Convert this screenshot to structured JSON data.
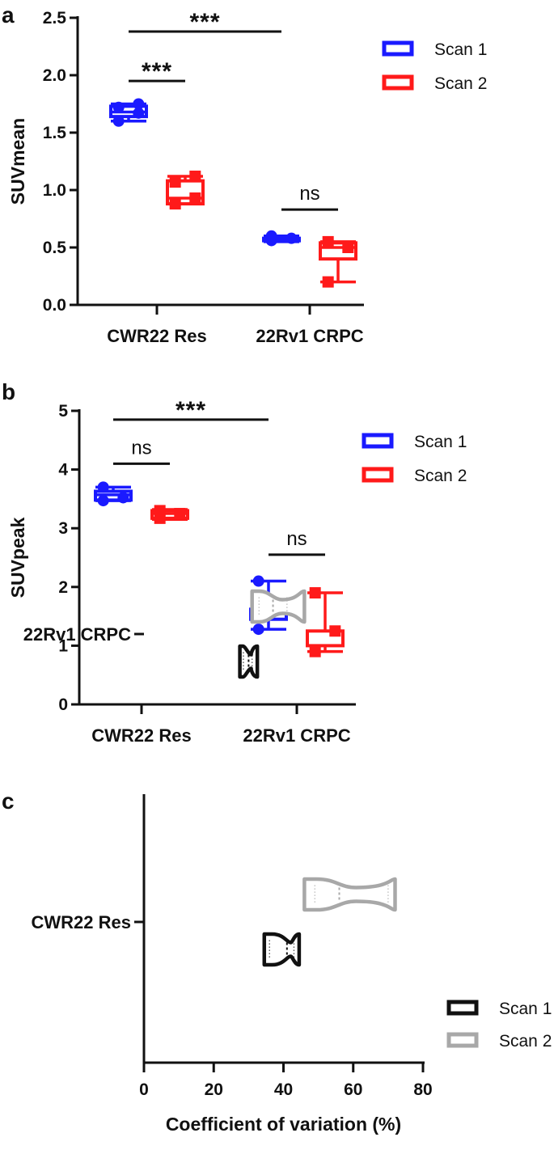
{
  "chart_data": [
    {
      "panel": "a",
      "type": "box",
      "ylabel": "SUVmean",
      "ylim": [
        0,
        2.5
      ],
      "yticks": [
        "0.0",
        "0.5",
        "1.0",
        "1.5",
        "2.0",
        "2.5"
      ],
      "categories": [
        "CWR22 Res",
        "22Rv1 CRPC"
      ],
      "legend": {
        "position": "top-right",
        "entries": [
          "Scan 1",
          "Scan 2"
        ]
      },
      "series": [
        {
          "name": "Scan 1",
          "color": "#1a1aff",
          "groups": [
            {
              "min": 1.6,
              "q1": 1.64,
              "median": 1.68,
              "q3": 1.73,
              "max": 1.75,
              "points": [
                1.6,
                1.67,
                1.72,
                1.75
              ]
            },
            {
              "min": 0.55,
              "q1": 0.56,
              "median": 0.57,
              "q3": 0.58,
              "max": 0.6,
              "points": [
                0.56,
                0.58,
                0.6
              ]
            }
          ]
        },
        {
          "name": "Scan 2",
          "color": "#ff1a1a",
          "groups": [
            {
              "min": 0.88,
              "q1": 0.88,
              "median": 0.93,
              "q3": 1.08,
              "max": 1.12,
              "points": [
                0.88,
                0.93,
                1.07,
                1.12
              ]
            },
            {
              "min": 0.2,
              "q1": 0.4,
              "median": 0.5,
              "q3": 0.54,
              "max": 0.55,
              "points": [
                0.2,
                0.5,
                0.55
              ]
            }
          ]
        }
      ],
      "comparisons": [
        {
          "from": [
            0,
            0
          ],
          "to": [
            0,
            1
          ],
          "y": 1.95,
          "label": "***"
        },
        {
          "from": [
            0,
            0
          ],
          "to": [
            1,
            0
          ],
          "y": 2.38,
          "label": "***"
        },
        {
          "from": [
            1,
            0
          ],
          "to": [
            1,
            1
          ],
          "y": 0.83,
          "label": "ns"
        }
      ]
    },
    {
      "panel": "b",
      "type": "box",
      "ylabel": "SUVpeak",
      "ylim": [
        0,
        5
      ],
      "yticks": [
        "0",
        "1",
        "2",
        "3",
        "4",
        "5"
      ],
      "categories": [
        "CWR22 Res",
        "22Rv1 CRPC"
      ],
      "legend": {
        "position": "top-right",
        "entries": [
          "Scan 1",
          "Scan 2"
        ]
      },
      "series": [
        {
          "name": "Scan 1",
          "color": "#1a1aff",
          "groups": [
            {
              "min": 3.47,
              "q1": 3.48,
              "median": 3.57,
              "q3": 3.63,
              "max": 3.7,
              "points": [
                3.47,
                3.52,
                3.7
              ]
            },
            {
              "min": 1.28,
              "q1": 1.45,
              "median": 1.62,
              "q3": 1.62,
              "max": 2.1,
              "points": [
                1.28,
                1.62,
                2.1
              ]
            }
          ]
        },
        {
          "name": "Scan 2",
          "color": "#ff1a1a",
          "groups": [
            {
              "min": 3.15,
              "q1": 3.17,
              "median": 3.25,
              "q3": 3.3,
              "max": 3.32,
              "points": [
                3.17,
                3.25,
                3.3
              ]
            },
            {
              "min": 0.9,
              "q1": 1.0,
              "median": 1.25,
              "q3": 1.25,
              "max": 1.9,
              "points": [
                0.9,
                1.25,
                1.9
              ]
            }
          ]
        }
      ],
      "comparisons": [
        {
          "from": [
            0,
            0
          ],
          "to": [
            0,
            1
          ],
          "y": 4.1,
          "label": "ns"
        },
        {
          "from": [
            0,
            0
          ],
          "to": [
            1,
            0
          ],
          "y": 4.85,
          "label": "***"
        },
        {
          "from": [
            1,
            0
          ],
          "to": [
            1,
            1
          ],
          "y": 2.55,
          "label": "ns"
        }
      ]
    },
    {
      "panel": "c",
      "type": "violin",
      "orientation": "horizontal",
      "xlabel": "Coefficient of variation (%)",
      "xlim": [
        0,
        80
      ],
      "xticks": [
        "0",
        "20",
        "40",
        "60",
        "80"
      ],
      "categories": [
        "22Rv1 CRPC",
        "CWR22 Res"
      ],
      "legend": {
        "position": "bottom-right",
        "entries": [
          "Scan 1",
          "Scan 2"
        ]
      },
      "series": [
        {
          "name": "Scan 1",
          "color": "#111111",
          "groups": [
            {
              "min": 27.5,
              "q1": 28.5,
              "median": 30,
              "q3": 31,
              "max": 32.5
            },
            {
              "min": 34.5,
              "q1": 36,
              "median": 41,
              "q3": 43,
              "max": 44.5
            }
          ]
        },
        {
          "name": "Scan 2",
          "color": "#a8a8a8",
          "groups": [
            {
              "min": 31,
              "q1": 33,
              "median": 37,
              "q3": 41,
              "max": 46
            },
            {
              "min": 46,
              "q1": 49,
              "median": 56,
              "q3": 70,
              "max": 72
            }
          ]
        }
      ]
    }
  ]
}
